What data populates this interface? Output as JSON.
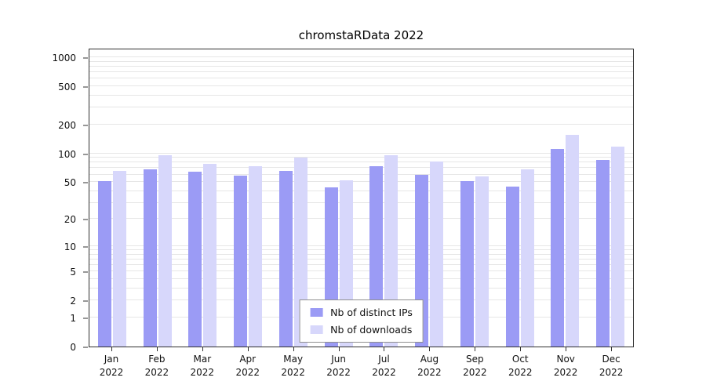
{
  "chart_data": {
    "type": "bar",
    "title": "chromstaRData 2022",
    "categories": [
      "Jan 2022",
      "Feb 2022",
      "Mar 2022",
      "Apr 2022",
      "May 2022",
      "Jun 2022",
      "Jul 2022",
      "Aug 2022",
      "Sep 2022",
      "Oct 2022",
      "Nov 2022",
      "Dec 2022"
    ],
    "series": [
      {
        "name": "Nb of distinct IPs",
        "color": "#9b9bf5",
        "values": [
          51,
          68,
          64,
          58,
          65,
          44,
          74,
          60,
          51,
          45,
          112,
          85
        ]
      },
      {
        "name": "Nb of downloads",
        "color": "#d7d7fb",
        "values": [
          65,
          95,
          78,
          74,
          90,
          52,
          95,
          82,
          57,
          68,
          155,
          118
        ]
      }
    ],
    "y_scale": "log10(x+1)",
    "y_ticks": [
      0,
      1,
      2,
      5,
      10,
      20,
      50,
      100,
      200,
      500,
      1000
    ],
    "grid_values": [
      1,
      2,
      3,
      4,
      5,
      6,
      7,
      8,
      9,
      10,
      20,
      30,
      40,
      50,
      60,
      70,
      80,
      90,
      100,
      200,
      300,
      400,
      500,
      600,
      700,
      800,
      900,
      1000
    ],
    "ylim_top": 1210,
    "legend_position": "bottom-center-inside",
    "grid": "horizontal"
  }
}
